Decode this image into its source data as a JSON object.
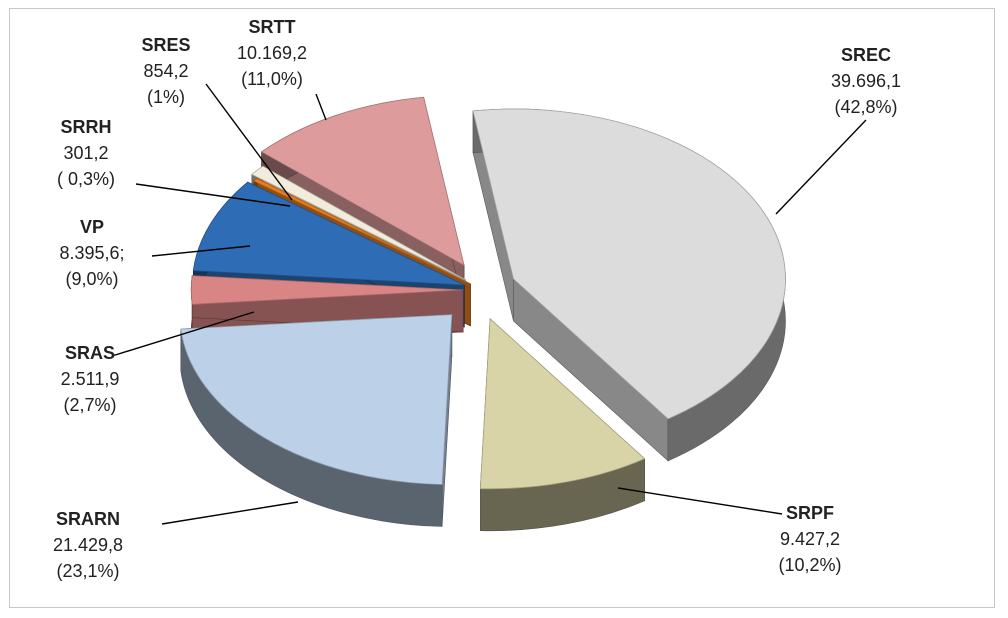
{
  "chart_data": {
    "type": "pie",
    "title": "",
    "slices": [
      {
        "name": "SREC",
        "value_text": "39.696,1",
        "pct_text": "(42,8%)",
        "value": 39696.1,
        "percent": 42.8,
        "color": "#dcdcdc"
      },
      {
        "name": "SRPF",
        "value_text": "9.427,2",
        "pct_text": "(10,2%)",
        "value": 9427.2,
        "percent": 10.2,
        "color": "#d8d4a8"
      },
      {
        "name": "SRARN",
        "value_text": "21.429,8",
        "pct_text": "(23,1%)",
        "value": 21429.8,
        "percent": 23.1,
        "color": "#bcd0e8"
      },
      {
        "name": "SRAS",
        "value_text": "2.511,9",
        "pct_text": "(2,7%)",
        "value": 2511.9,
        "percent": 2.7,
        "color": "#d98585"
      },
      {
        "name": "VP",
        "value_text": "8.395,6;",
        "pct_text": "(9,0%)",
        "value": 8395.6,
        "percent": 9.0,
        "color": "#2e6cb5"
      },
      {
        "name": "SRRH",
        "value_text": "301,2",
        "pct_text": "( 0,3%)",
        "value": 301.2,
        "percent": 0.3,
        "color": "#e87e1e"
      },
      {
        "name": "SRES",
        "value_text": "854,2",
        "pct_text": "(1%)",
        "value": 854.2,
        "percent": 1.0,
        "color": "#f1ecdc"
      },
      {
        "name": "SRTT",
        "value_text": "10.169,2",
        "pct_text": "(11,0%)",
        "value": 10169.2,
        "percent": 11.0,
        "color": "#dd9b9b"
      }
    ]
  }
}
